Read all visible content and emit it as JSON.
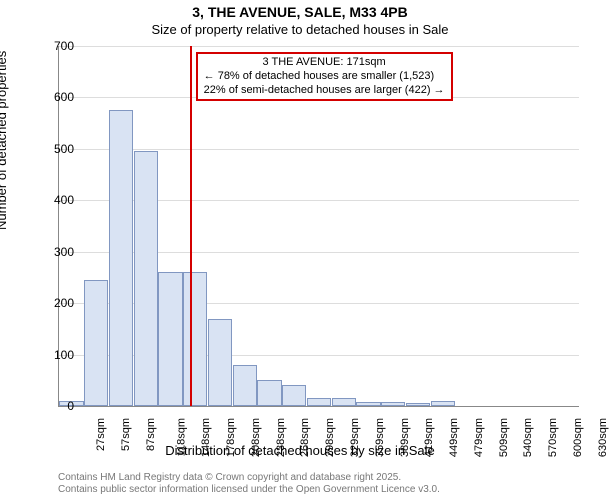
{
  "chart": {
    "type": "histogram",
    "title": "3, THE AVENUE, SALE, M33 4PB",
    "subtitle": "Size of property relative to detached houses in Sale",
    "xlabel": "Distribution of detached houses by size in Sale",
    "ylabel": "Number of detached properties",
    "ylim": [
      0,
      700
    ],
    "ytick_step": 100,
    "yticks": [
      0,
      100,
      200,
      300,
      400,
      500,
      600,
      700
    ],
    "categories": [
      "27sqm",
      "57sqm",
      "87sqm",
      "118sqm",
      "148sqm",
      "178sqm",
      "208sqm",
      "238sqm",
      "268sqm",
      "298sqm",
      "329sqm",
      "359sqm",
      "389sqm",
      "419sqm",
      "449sqm",
      "479sqm",
      "509sqm",
      "540sqm",
      "570sqm",
      "600sqm",
      "630sqm"
    ],
    "values": [
      10,
      245,
      575,
      495,
      260,
      260,
      170,
      80,
      50,
      40,
      15,
      15,
      8,
      8,
      5,
      10,
      0,
      0,
      0,
      0,
      0
    ],
    "bar_fill": "#d9e3f3",
    "bar_border": "rgba(70,100,160,0.6)",
    "grid_color": "#dddddd",
    "axis_color": "#888888",
    "background_color": "#ffffff",
    "title_fontsize": 14,
    "subtitle_fontsize": 13,
    "label_fontsize": 13,
    "tick_fontsize": 12,
    "xtick_fontsize": 11,
    "marker": {
      "position_sqm": 171,
      "color": "#d40000",
      "box": {
        "line1": "3 THE AVENUE: 171sqm",
        "line2": "← 78% of detached houses are smaller (1,523)",
        "line3": "22% of semi-detached houses are larger (422) →"
      }
    },
    "footnote_line1": "Contains HM Land Registry data © Crown copyright and database right 2025.",
    "footnote_line2": "Contains public sector information licensed under the Open Government Licence v3.0."
  }
}
